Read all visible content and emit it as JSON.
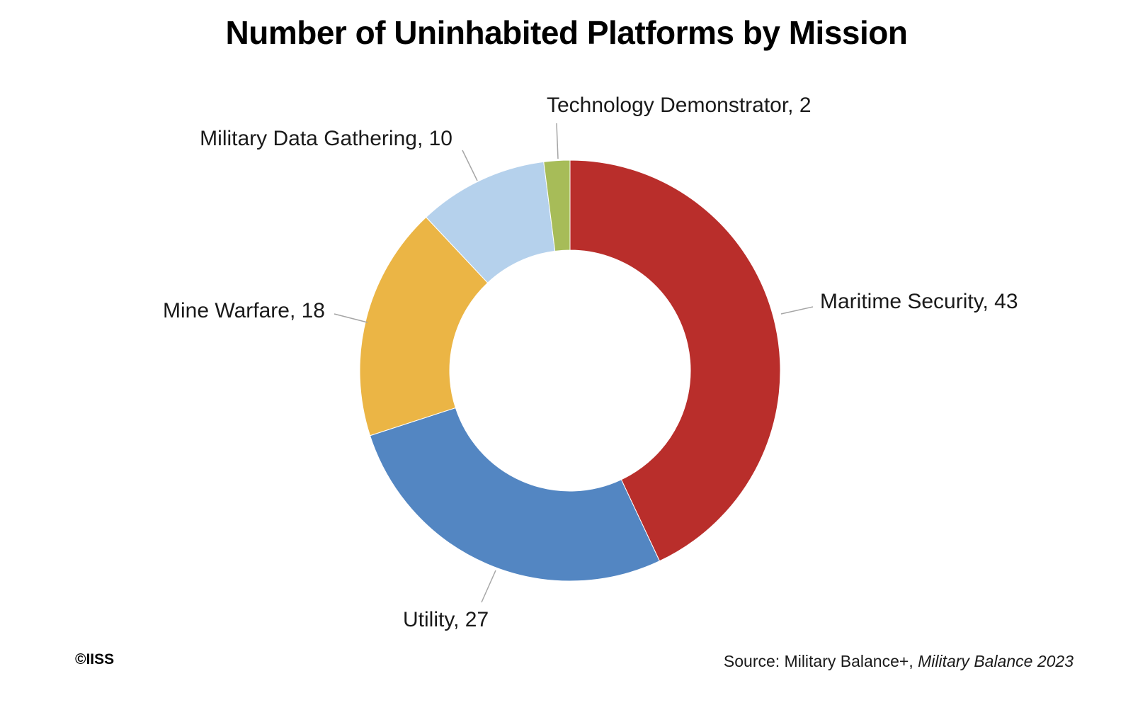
{
  "chart_data": {
    "type": "pie",
    "variant": "donut",
    "title": "Number of Uninhabited Platforms by Mission",
    "categories": [
      "Maritime Security",
      "Utility",
      "Mine Warfare",
      "Military Data Gathering",
      "Technology Demonstrator"
    ],
    "values": [
      43,
      27,
      18,
      10,
      2
    ],
    "labels": [
      "Maritime Security, 43",
      "Utility, 27",
      "Mine Warfare, 18",
      "Military Data Gathering, 10",
      "Technology Demonstrator, 2"
    ],
    "colors": [
      "#b92e2b",
      "#5386c2",
      "#ebb545",
      "#b5d1ec",
      "#a7bc58"
    ],
    "start": "12 o'clock, clockwise",
    "legend": "none (data labels with leader lines)"
  },
  "footer": {
    "copyright": "©IISS",
    "source_prefix": "Source: Military Balance+, ",
    "source_italic": "Military Balance 2023"
  }
}
